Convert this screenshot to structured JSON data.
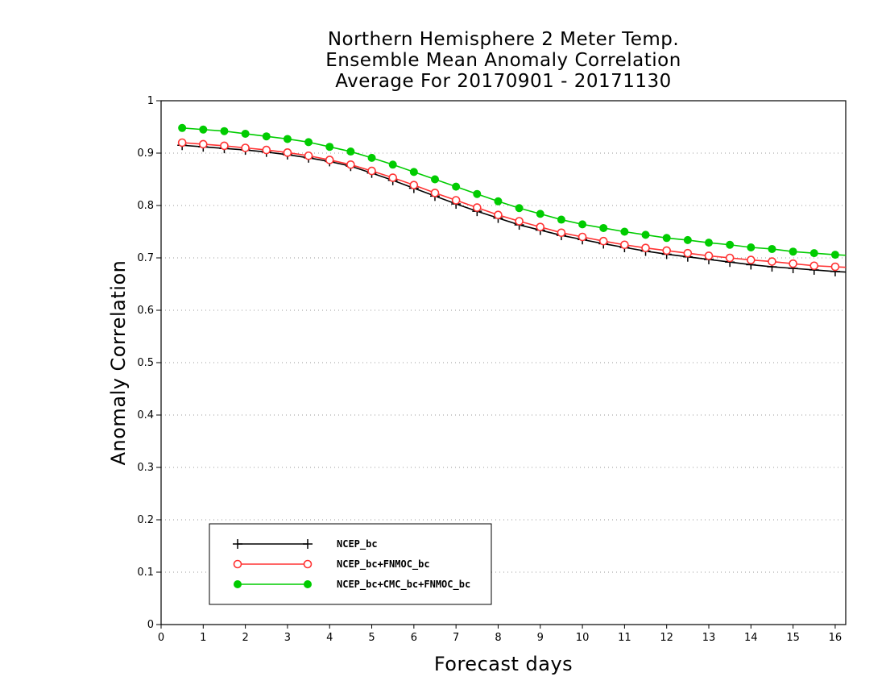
{
  "chart_data": {
    "type": "line",
    "title_lines": [
      "Northern Hemisphere 2 Meter Temp.",
      "Ensemble Mean Anomaly Correlation",
      "Average For 20170901 - 20171130"
    ],
    "xlabel": "Forecast days",
    "ylabel": "Anomaly Correlation",
    "xlim": [
      0,
      16.25
    ],
    "ylim": [
      0,
      1
    ],
    "x_ticks": [
      "0",
      "1",
      "2",
      "3",
      "4",
      "5",
      "6",
      "7",
      "8",
      "9",
      "10",
      "11",
      "12",
      "13",
      "14",
      "15",
      "16"
    ],
    "y_ticks": [
      "0",
      "0.1",
      "0.2",
      "0.3",
      "0.4",
      "0.5",
      "0.6",
      "0.7",
      "0.8",
      "0.9",
      "1"
    ],
    "grid": "horizontal dotted",
    "legend_position": "lower-left",
    "x": [
      0.5,
      1,
      1.5,
      2,
      2.5,
      3,
      3.5,
      4,
      4.5,
      5,
      5.5,
      6,
      6.5,
      7,
      7.5,
      8,
      8.5,
      9,
      9.5,
      10,
      10.5,
      11,
      11.5,
      12,
      12.5,
      13,
      13.5,
      14,
      14.5,
      15,
      15.5,
      16,
      16.25
    ],
    "series": [
      {
        "name": "NCEP_bc",
        "color": "#000000",
        "marker": "plus",
        "values": [
          0.915,
          0.912,
          0.909,
          0.906,
          0.902,
          0.897,
          0.891,
          0.884,
          0.875,
          0.862,
          0.848,
          0.833,
          0.818,
          0.803,
          0.789,
          0.776,
          0.763,
          0.753,
          0.743,
          0.735,
          0.727,
          0.72,
          0.713,
          0.707,
          0.702,
          0.697,
          0.692,
          0.687,
          0.683,
          0.68,
          0.677,
          0.674,
          0.673
        ]
      },
      {
        "name": "NCEP_bc+FNMOC_bc",
        "color": "#ff3333",
        "marker": "open-circle",
        "values": [
          0.92,
          0.917,
          0.914,
          0.91,
          0.906,
          0.901,
          0.895,
          0.887,
          0.878,
          0.866,
          0.853,
          0.839,
          0.824,
          0.81,
          0.796,
          0.782,
          0.77,
          0.759,
          0.748,
          0.74,
          0.732,
          0.725,
          0.719,
          0.714,
          0.709,
          0.704,
          0.7,
          0.696,
          0.693,
          0.689,
          0.685,
          0.683,
          0.682
        ]
      },
      {
        "name": "NCEP_bc+CMC_bc+FNMOC_bc",
        "color": "#00cc00",
        "marker": "filled-circle",
        "values": [
          0.948,
          0.945,
          0.942,
          0.937,
          0.932,
          0.927,
          0.921,
          0.912,
          0.903,
          0.891,
          0.878,
          0.864,
          0.85,
          0.836,
          0.822,
          0.808,
          0.795,
          0.784,
          0.773,
          0.764,
          0.757,
          0.75,
          0.744,
          0.738,
          0.734,
          0.729,
          0.725,
          0.72,
          0.717,
          0.712,
          0.709,
          0.706,
          0.705
        ]
      }
    ]
  }
}
